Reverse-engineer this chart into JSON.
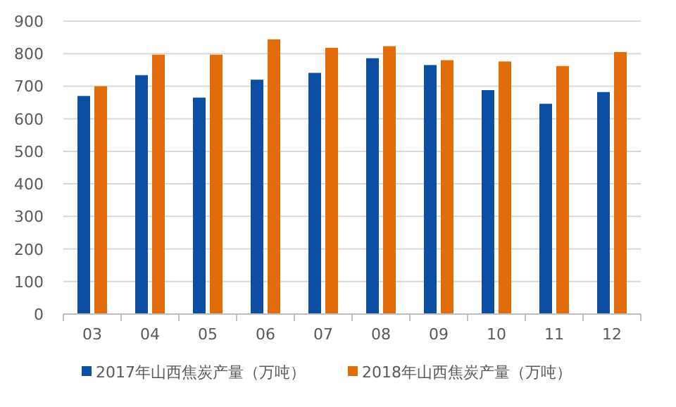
{
  "chart_data": {
    "type": "bar",
    "categories": [
      "03",
      "04",
      "05",
      "06",
      "07",
      "08",
      "09",
      "10",
      "11",
      "12"
    ],
    "series": [
      {
        "name": "2017年山西焦炭产量（万吨）",
        "color": "#0b4ea2",
        "values": [
          670,
          734,
          665,
          720,
          741,
          786,
          765,
          688,
          646,
          682
        ]
      },
      {
        "name": "2018年山西焦炭产量（万吨）",
        "color": "#e36c0a",
        "values": [
          700,
          797,
          797,
          844,
          818,
          823,
          780,
          776,
          762,
          805
        ]
      }
    ],
    "ylim": [
      0,
      900
    ],
    "yticks": [
      0,
      100,
      200,
      300,
      400,
      500,
      600,
      700,
      800,
      900
    ],
    "grid": "y",
    "legend": "bottom"
  }
}
